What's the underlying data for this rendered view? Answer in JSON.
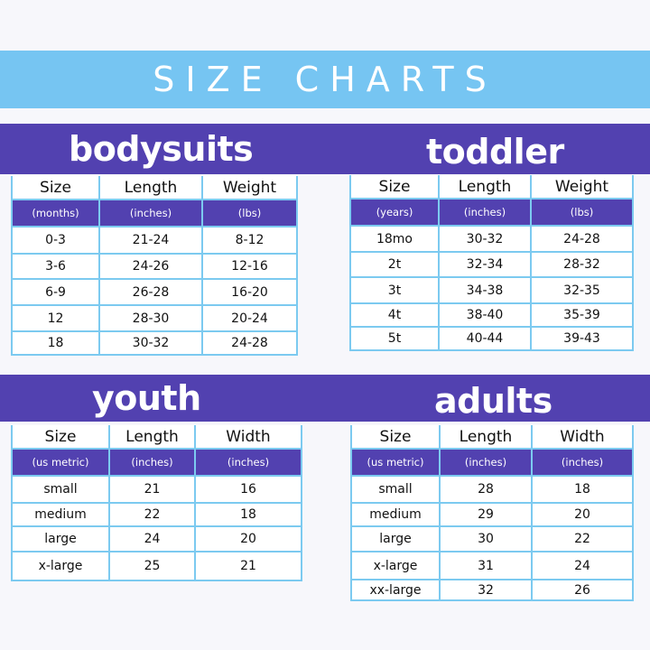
{
  "title": "SIZE CHARTS",
  "bodysuits": {
    "heading": "bodysuits",
    "columns": [
      "Size",
      "Length",
      "Weight"
    ],
    "units": [
      "(months)",
      "(inches)",
      "(lbs)"
    ],
    "rows": [
      [
        "0-3",
        "21-24",
        "8-12"
      ],
      [
        "3-6",
        "24-26",
        "12-16"
      ],
      [
        "6-9",
        "26-28",
        "16-20"
      ],
      [
        "12",
        "28-30",
        "20-24"
      ],
      [
        "18",
        "30-32",
        "24-28"
      ]
    ]
  },
  "toddler": {
    "heading": "toddler",
    "columns": [
      "Size",
      "Length",
      "Weight"
    ],
    "units": [
      "(years)",
      "(inches)",
      "(lbs)"
    ],
    "rows": [
      [
        "18mo",
        "30-32",
        "24-28"
      ],
      [
        "2t",
        "32-34",
        "28-32"
      ],
      [
        "3t",
        "34-38",
        "32-35"
      ],
      [
        "4t",
        "38-40",
        "35-39"
      ],
      [
        "5t",
        "40-44",
        "39-43"
      ]
    ]
  },
  "youth": {
    "heading": "youth",
    "columns": [
      "Size",
      "Length",
      "Width"
    ],
    "units": [
      "(us metric)",
      "(inches)",
      "(inches)"
    ],
    "rows": [
      [
        "small",
        "21",
        "16"
      ],
      [
        "medium",
        "22",
        "18"
      ],
      [
        "large",
        "24",
        "20"
      ],
      [
        "x-large",
        "25",
        "21"
      ]
    ]
  },
  "adults": {
    "heading": "adults",
    "columns": [
      "Size",
      "Length",
      "Width"
    ],
    "units": [
      "(us metric)",
      "(inches)",
      "(inches)"
    ],
    "rows": [
      [
        "small",
        "28",
        "18"
      ],
      [
        "medium",
        "29",
        "20"
      ],
      [
        "large",
        "30",
        "22"
      ],
      [
        "x-large",
        "31",
        "24"
      ],
      [
        "xx-large",
        "32",
        "26"
      ]
    ]
  },
  "colors": {
    "light_blue": "#76c5f2",
    "purple": "#5241b0",
    "grid": "#7ccaf0"
  }
}
